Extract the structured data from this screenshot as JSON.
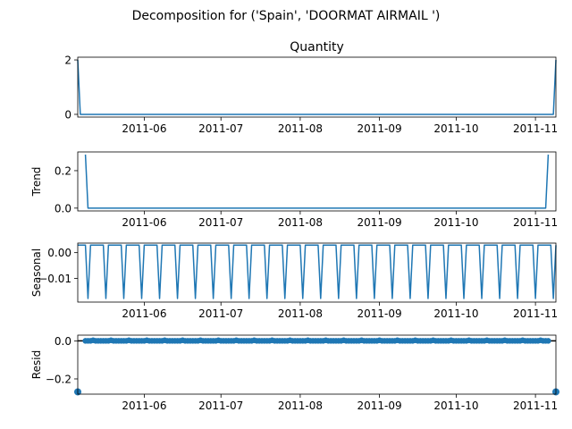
{
  "figure": {
    "suptitle": "Decomposition for ('Spain', 'DOORMAT AIRMAIL ')",
    "line_color": "#1f77b4"
  },
  "chart_data": [
    {
      "type": "line",
      "title": "Quantity",
      "ylabel": "",
      "x_range": [
        "2011-05-06",
        "2011-11-09"
      ],
      "xticks": [
        "2011-06",
        "2011-07",
        "2011-08",
        "2011-09",
        "2011-10",
        "2011-11"
      ],
      "ylim": [
        -0.1,
        2.1
      ],
      "yticks": [
        0,
        2
      ],
      "ytick_labels": [
        "0",
        "2"
      ],
      "x": [
        "2011-05-06",
        "2011-05-07",
        "2011-11-08",
        "2011-11-09"
      ],
      "values": [
        2,
        0,
        0,
        2
      ]
    },
    {
      "type": "line",
      "title": "",
      "ylabel": "Trend",
      "x_range": [
        "2011-05-06",
        "2011-11-09"
      ],
      "xticks": [
        "2011-06",
        "2011-07",
        "2011-08",
        "2011-09",
        "2011-10",
        "2011-11"
      ],
      "ylim": [
        -0.015,
        0.3
      ],
      "yticks": [
        0,
        0.2
      ],
      "ytick_labels": [
        "0.0",
        "0.2"
      ],
      "x": [
        "2011-05-09",
        "2011-05-10",
        "2011-11-05",
        "2011-11-06"
      ],
      "values": [
        0.286,
        0,
        0,
        0.286
      ]
    },
    {
      "type": "line",
      "title": "",
      "ylabel": "Seasonal",
      "x_range": [
        "2011-05-06",
        "2011-11-09"
      ],
      "xticks": [
        "2011-06",
        "2011-07",
        "2011-08",
        "2011-09",
        "2011-10",
        "2011-11"
      ],
      "ylim": [
        -0.0192,
        0.0037
      ],
      "yticks": [
        0,
        -0.01
      ],
      "ytick_labels": [
        "0.00",
        "−0.01"
      ],
      "start": "2011-05-06",
      "period": 7,
      "pattern": [
        0.0029,
        0.0029,
        0.0029,
        0.0029,
        -0.0178,
        0.0029,
        0.0029
      ]
    },
    {
      "type": "scatter",
      "title": "",
      "ylabel": "Resid",
      "x_range": [
        "2011-05-06",
        "2011-11-09"
      ],
      "xticks": [
        "2011-06",
        "2011-07",
        "2011-08",
        "2011-09",
        "2011-10",
        "2011-11"
      ],
      "ylim": [
        -0.28,
        0.03
      ],
      "yticks": [
        0,
        -0.2
      ],
      "ytick_labels": [
        "0.0",
        "−0.2"
      ],
      "zero_line": true,
      "start": "2011-05-09",
      "end": "2011-11-06",
      "base_value": 0,
      "period": 7,
      "pattern": [
        0,
        0,
        0,
        0.003,
        0,
        0,
        0
      ],
      "outliers": [
        {
          "x": "2011-05-06",
          "y": -0.268
        },
        {
          "x": "2011-11-09",
          "y": -0.268
        }
      ]
    }
  ]
}
